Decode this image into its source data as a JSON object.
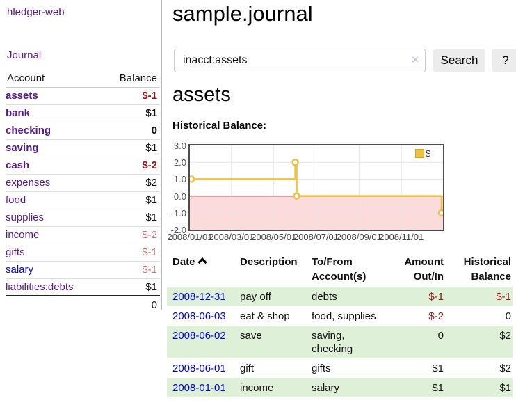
{
  "app": {
    "brand": "hledger-web",
    "nav": {
      "journal": "Journal"
    }
  },
  "sidebar": {
    "columns": {
      "account": "Account",
      "balance": "Balance"
    },
    "accounts": [
      {
        "name": "assets",
        "indent": 1,
        "bold": true,
        "balance": "$-1",
        "balance_style": "neg-strong"
      },
      {
        "name": "bank",
        "indent": 2,
        "bold": true,
        "balance": "$1",
        "balance_style": "strong"
      },
      {
        "name": "checking",
        "indent": 3,
        "bold": true,
        "balance": "0",
        "balance_style": "strong"
      },
      {
        "name": "saving",
        "indent": 3,
        "bold": true,
        "balance": "$1",
        "balance_style": "strong"
      },
      {
        "name": "cash",
        "indent": 2,
        "bold": true,
        "balance": "$-2",
        "balance_style": "neg-strong"
      },
      {
        "name": "expenses",
        "indent": 1,
        "bold": false,
        "balance": "$2",
        "balance_style": "plain"
      },
      {
        "name": "food",
        "indent": 2,
        "bold": false,
        "balance": "$1",
        "balance_style": "plain"
      },
      {
        "name": "supplies",
        "indent": 2,
        "bold": false,
        "balance": "$1",
        "balance_style": "plain"
      },
      {
        "name": "income",
        "indent": 1,
        "bold": false,
        "balance": "$-2",
        "balance_style": "neg-soft"
      },
      {
        "name": "gifts",
        "indent": 2,
        "bold": false,
        "balance": "$-1",
        "balance_style": "neg-soft"
      },
      {
        "name": "salary",
        "indent": 2,
        "bold": false,
        "balance": "$-1",
        "balance_style": "neg-soft",
        "link_color": "#0000ee"
      },
      {
        "name": "liabilities:debts",
        "indent": 1,
        "bold": false,
        "balance": "$1",
        "balance_style": "plain"
      }
    ],
    "total": "0"
  },
  "main": {
    "title": "sample.journal",
    "search": {
      "value": "inacct:assets",
      "clear_icon": "×",
      "button_label": "Search",
      "help_label": "?"
    },
    "account_heading": "assets",
    "chart_label": "Historical Balance:"
  },
  "chart_data": {
    "type": "line",
    "style": "step-after",
    "title": "Historical Balance:",
    "series": [
      {
        "name": "$",
        "color": "#edc240",
        "points": [
          [
            "2008-01-01",
            1
          ],
          [
            "2008-06-01",
            2
          ],
          [
            "2008-06-03",
            0
          ],
          [
            "2008-12-31",
            -1
          ]
        ]
      }
    ],
    "x_range": [
      "2008-01-01",
      "2008-12-31"
    ],
    "ylim": [
      -2,
      3
    ],
    "yticks": [
      "3.0",
      "2.0",
      "1.0",
      "0.0",
      "-1.0",
      "-2.0"
    ],
    "ytick_values": [
      3,
      2,
      1,
      0,
      -1,
      -2
    ],
    "xticks": [
      "2008/01/01",
      "2008/03/01",
      "2008/05/01",
      "2008/07/01",
      "2008/09/01",
      "2008/11/01"
    ],
    "legend": {
      "position": "top-right",
      "label": "$"
    },
    "grid": true,
    "colors": {
      "negative_region": "#fbdbdb",
      "zero_line": "#7a0000",
      "gridline": "#e6e6e6",
      "plot_border": "#4c4c4c"
    }
  },
  "register": {
    "headers": {
      "date": "Date",
      "description": "Description",
      "accounts": "To/From Account(s)",
      "amount": "Amount Out/In",
      "balance": "Historical Balance"
    },
    "rows": [
      {
        "date": "2008-12-31",
        "description": "pay off",
        "accounts": "debts",
        "amount": "$-1",
        "amount_neg": true,
        "balance": "$-1",
        "balance_neg": true,
        "striped": true
      },
      {
        "date": "2008-06-03",
        "description": "eat & shop",
        "accounts": "food, supplies",
        "amount": "$-2",
        "amount_neg": true,
        "balance": "0",
        "balance_neg": false,
        "striped": false
      },
      {
        "date": "2008-06-02",
        "description": "save",
        "accounts": "saving, checking",
        "amount": "0",
        "amount_neg": false,
        "balance": "$2",
        "balance_neg": false,
        "striped": true
      },
      {
        "date": "2008-06-01",
        "description": "gift",
        "accounts": "gifts",
        "amount": "$1",
        "amount_neg": false,
        "balance": "$2",
        "balance_neg": false,
        "striped": false
      },
      {
        "date": "2008-01-01",
        "description": "income",
        "accounts": "salary",
        "amount": "$1",
        "amount_neg": false,
        "balance": "$1",
        "balance_neg": false,
        "striped": true
      }
    ]
  }
}
